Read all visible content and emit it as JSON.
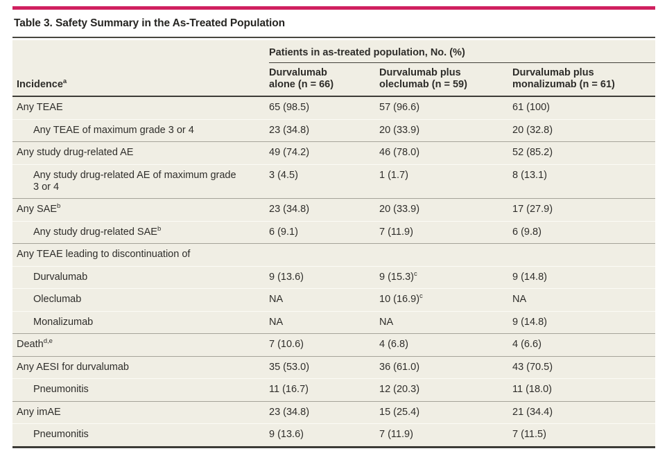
{
  "page": {
    "accent_color": "#d0205f",
    "table_background": "#f0eee4",
    "title": "Table 3. Safety Summary in the As-Treated Population"
  },
  "table": {
    "group_header": "Patients in as-treated population, No. (%)",
    "incidence_header": {
      "label": "Incidence",
      "sup": "a"
    },
    "columns": [
      {
        "line1": "Durvalumab",
        "line2": "alone (n = 66)"
      },
      {
        "line1": "Durvalumab plus",
        "line2": "oleclumab (n = 59)"
      },
      {
        "line1": "Durvalumab plus",
        "line2": "monalizumab (n = 61)"
      }
    ],
    "rows": [
      {
        "label": "Any TEAE",
        "group_start": true,
        "first": true,
        "values": [
          "65 (98.5)",
          "57 (96.6)",
          "61 (100)"
        ]
      },
      {
        "label": "Any TEAE of maximum grade 3 or 4",
        "indent": true,
        "values": [
          "23 (34.8)",
          "20 (33.9)",
          "20 (32.8)"
        ]
      },
      {
        "label": "Any study drug-related AE",
        "group_start": true,
        "values": [
          "49 (74.2)",
          "46 (78.0)",
          "52 (85.2)"
        ]
      },
      {
        "label": "Any study drug-related AE of maximum grade 3 or 4",
        "indent": true,
        "values": [
          "3 (4.5)",
          "1 (1.7)",
          "8 (13.1)"
        ]
      },
      {
        "label": "Any SAE",
        "label_sup": "b",
        "group_start": true,
        "values": [
          "23 (34.8)",
          "20 (33.9)",
          "17 (27.9)"
        ]
      },
      {
        "label": "Any study drug-related SAE",
        "label_sup": "b",
        "indent": true,
        "values": [
          "6 (9.1)",
          "7 (11.9)",
          "6 (9.8)"
        ]
      },
      {
        "label": "Any TEAE leading to discontinuation of",
        "group_start": true,
        "values": [
          "",
          "",
          ""
        ]
      },
      {
        "label": "Durvalumab",
        "indent": true,
        "values": [
          "9 (13.6)",
          {
            "text": "9 (15.3)",
            "sup": "c"
          },
          "9 (14.8)"
        ]
      },
      {
        "label": "Oleclumab",
        "indent": true,
        "values": [
          "NA",
          {
            "text": "10 (16.9)",
            "sup": "c"
          },
          "NA"
        ]
      },
      {
        "label": "Monalizumab",
        "indent": true,
        "values": [
          "NA",
          "NA",
          "9 (14.8)"
        ]
      },
      {
        "label": "Death",
        "label_sup": "d,e",
        "group_start": true,
        "values": [
          "7 (10.6)",
          "4 (6.8)",
          "4 (6.6)"
        ]
      },
      {
        "label": "Any AESI for durvalumab",
        "group_start": true,
        "values": [
          "35 (53.0)",
          "36 (61.0)",
          "43 (70.5)"
        ]
      },
      {
        "label": "Pneumonitis",
        "indent": true,
        "values": [
          "11 (16.7)",
          "12 (20.3)",
          "11 (18.0)"
        ]
      },
      {
        "label": "Any imAE",
        "group_start": true,
        "values": [
          "23 (34.8)",
          "15 (25.4)",
          "21 (34.4)"
        ]
      },
      {
        "label": "Pneumonitis",
        "indent": true,
        "values": [
          "9 (13.6)",
          "7 (11.9)",
          "7 (11.5)"
        ]
      }
    ]
  }
}
